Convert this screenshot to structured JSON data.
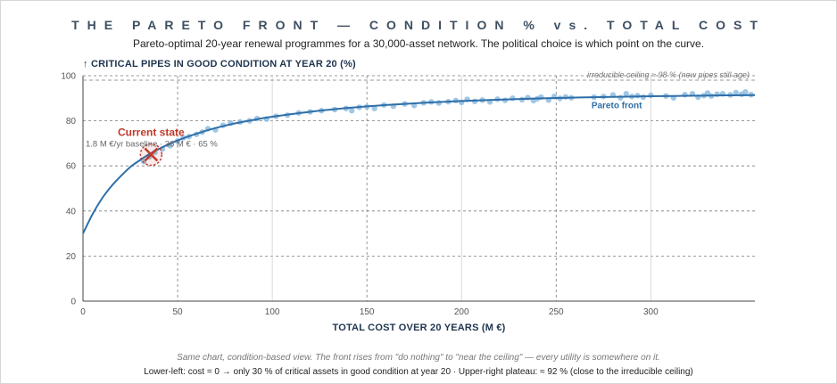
{
  "title": "THE PARETO FRONT — CONDITION % vs. TOTAL COST",
  "subtitle": "Pareto-optimal 20-year renewal programmes for a 30,000-asset network. The political choice is which point on the curve.",
  "caption": "Same chart, condition-based view. The front rises from \"do nothing\" to \"near the ceiling\" — every utility is somewhere on it.",
  "footnote": "Lower-left: cost = 0 → only 30 % of critical assets in good condition at year 20  ·  Upper-right plateau: ≈ 92 % (close to the irreducible ceiling)",
  "colors": {
    "curve": "#2f6fa8",
    "points": "#8fbde0",
    "ceiling": "#9a9a9a",
    "current_state": "#c0392b",
    "axis_label": "#1f3550",
    "title": "#3e4f62"
  },
  "chart_data": {
    "type": "scatter",
    "ylabel": "↑  CRITICAL PIPES IN GOOD CONDITION AT YEAR 20  (%)",
    "xlabel": "TOTAL COST OVER 20 YEARS  (M €)",
    "xlim": [
      0,
      355
    ],
    "ylim": [
      0,
      100
    ],
    "x_ticks": [
      0,
      50,
      100,
      150,
      200,
      250,
      300
    ],
    "y_ticks": [
      0,
      20,
      40,
      60,
      80,
      100
    ],
    "grid": true,
    "curve": {
      "name": "Pareto front",
      "x": [
        0,
        5,
        10,
        15,
        20,
        25,
        30,
        35,
        40,
        50,
        60,
        70,
        80,
        90,
        100,
        120,
        140,
        160,
        180,
        200,
        220,
        240,
        260,
        280,
        300,
        320,
        340,
        355
      ],
      "y": [
        30,
        38.5,
        45.5,
        51,
        55.5,
        59.5,
        62.5,
        65.2,
        67.5,
        71.3,
        74.3,
        76.8,
        78.8,
        80.4,
        81.8,
        84.0,
        85.7,
        87.0,
        88.0,
        88.8,
        89.4,
        89.9,
        90.3,
        90.6,
        90.9,
        91.1,
        91.3,
        91.4
      ]
    },
    "points": {
      "x": [
        32,
        35,
        38,
        42,
        46,
        50,
        53,
        56,
        60,
        63,
        66,
        70,
        74,
        78,
        83,
        88,
        92,
        97,
        102,
        108,
        114,
        120,
        126,
        133,
        139,
        142,
        146,
        150,
        154,
        159,
        164,
        170,
        175,
        180,
        184,
        188,
        193,
        197,
        200,
        203,
        207,
        211,
        215,
        219,
        223,
        227,
        232,
        235,
        238,
        240,
        242,
        246,
        249,
        252,
        255,
        258,
        270,
        275,
        280,
        284,
        287,
        290,
        293,
        296,
        300,
        308,
        312,
        318,
        322,
        325,
        328,
        330,
        332,
        335,
        338,
        342,
        345,
        348,
        350,
        353
      ],
      "y": [
        62,
        64,
        66,
        67.5,
        69,
        71,
        72.5,
        73,
        74,
        75,
        76.5,
        76,
        78,
        79,
        79.5,
        80,
        81,
        80.8,
        82,
        82.5,
        83.5,
        84,
        84.5,
        85,
        85.5,
        84.5,
        86,
        86.2,
        85.5,
        87,
        86.5,
        87.5,
        86.8,
        88,
        88.4,
        87.9,
        88.5,
        89,
        88.2,
        89.5,
        88.6,
        89.2,
        88.4,
        89.6,
        89.1,
        90,
        89.4,
        90.3,
        89,
        89.8,
        90.5,
        89.2,
        90.8,
        90,
        90.6,
        90.2,
        90.5,
        90.8,
        91.5,
        90.2,
        92,
        90.8,
        91.2,
        90.5,
        91.3,
        91,
        90.2,
        91.6,
        92,
        90.5,
        91.2,
        92.3,
        91,
        91.8,
        92,
        91.5,
        92.5,
        91.8,
        92.8,
        91.6
      ]
    },
    "ceiling": {
      "y": 98,
      "label": "irreducible ceiling ≈ 98 % (new pipes still age)"
    },
    "current_state": {
      "x": 36,
      "y": 65,
      "label": "Current state",
      "sublabel": "1.8 M €/yr baseline · 36 M € · 65 %"
    },
    "curve_label": "Pareto front"
  }
}
